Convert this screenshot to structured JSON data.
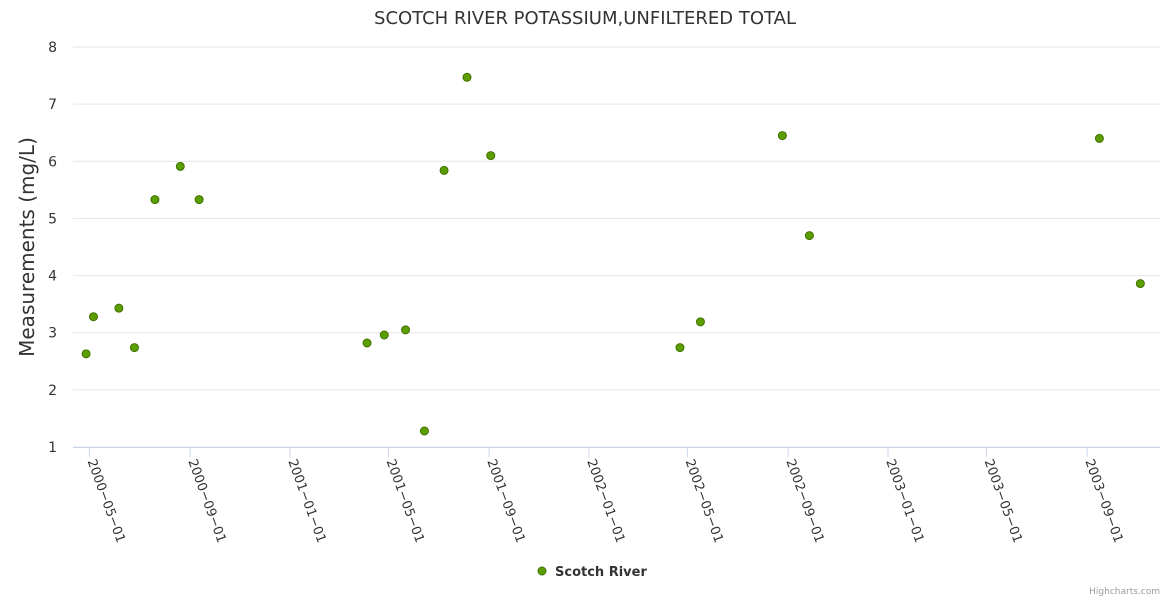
{
  "credits": "Highcharts.com",
  "chart_data": {
    "type": "scatter",
    "title": "SCOTCH RIVER POTASSIUM,UNFILTERED TOTAL",
    "xlabel": "",
    "ylabel": "Measurements (mg/L)",
    "ylim": [
      1,
      8
    ],
    "yticks": [
      "1",
      "2",
      "3",
      "4",
      "5",
      "6",
      "7",
      "8"
    ],
    "xlim": [
      "2000-04-11",
      "2003-11-29"
    ],
    "xticks": [
      "2000-05-01",
      "2000-09-01",
      "2001-01-01",
      "2001-05-01",
      "2001-09-01",
      "2002-01-01",
      "2002-05-01",
      "2002-09-01",
      "2003-01-01",
      "2003-05-01",
      "2003-09-01"
    ],
    "grid": true,
    "legend_position": "bottom-center",
    "colors": {
      "marker": "#5c9e00",
      "marker_stroke": "#3f7000",
      "grid": "#e6e6e6",
      "axis": "#ccd6eb"
    },
    "series": [
      {
        "name": "Scotch River",
        "points": [
          {
            "x": "2000-04-27",
            "y": 2.63
          },
          {
            "x": "2000-05-06",
            "y": 3.28
          },
          {
            "x": "2000-06-06",
            "y": 3.43
          },
          {
            "x": "2000-06-25",
            "y": 2.74
          },
          {
            "x": "2000-07-20",
            "y": 5.33
          },
          {
            "x": "2000-08-20",
            "y": 5.91
          },
          {
            "x": "2000-09-12",
            "y": 5.33
          },
          {
            "x": "2001-04-05",
            "y": 2.82
          },
          {
            "x": "2001-04-26",
            "y": 2.96
          },
          {
            "x": "2001-05-22",
            "y": 3.05
          },
          {
            "x": "2001-06-14",
            "y": 1.28
          },
          {
            "x": "2001-07-08",
            "y": 5.84
          },
          {
            "x": "2001-08-05",
            "y": 7.47
          },
          {
            "x": "2001-09-03",
            "y": 6.1
          },
          {
            "x": "2002-04-22",
            "y": 2.74
          },
          {
            "x": "2002-05-17",
            "y": 3.19
          },
          {
            "x": "2002-08-25",
            "y": 6.45
          },
          {
            "x": "2002-09-27",
            "y": 4.7
          },
          {
            "x": "2003-09-16",
            "y": 6.4
          },
          {
            "x": "2003-11-05",
            "y": 3.86
          }
        ]
      }
    ]
  }
}
